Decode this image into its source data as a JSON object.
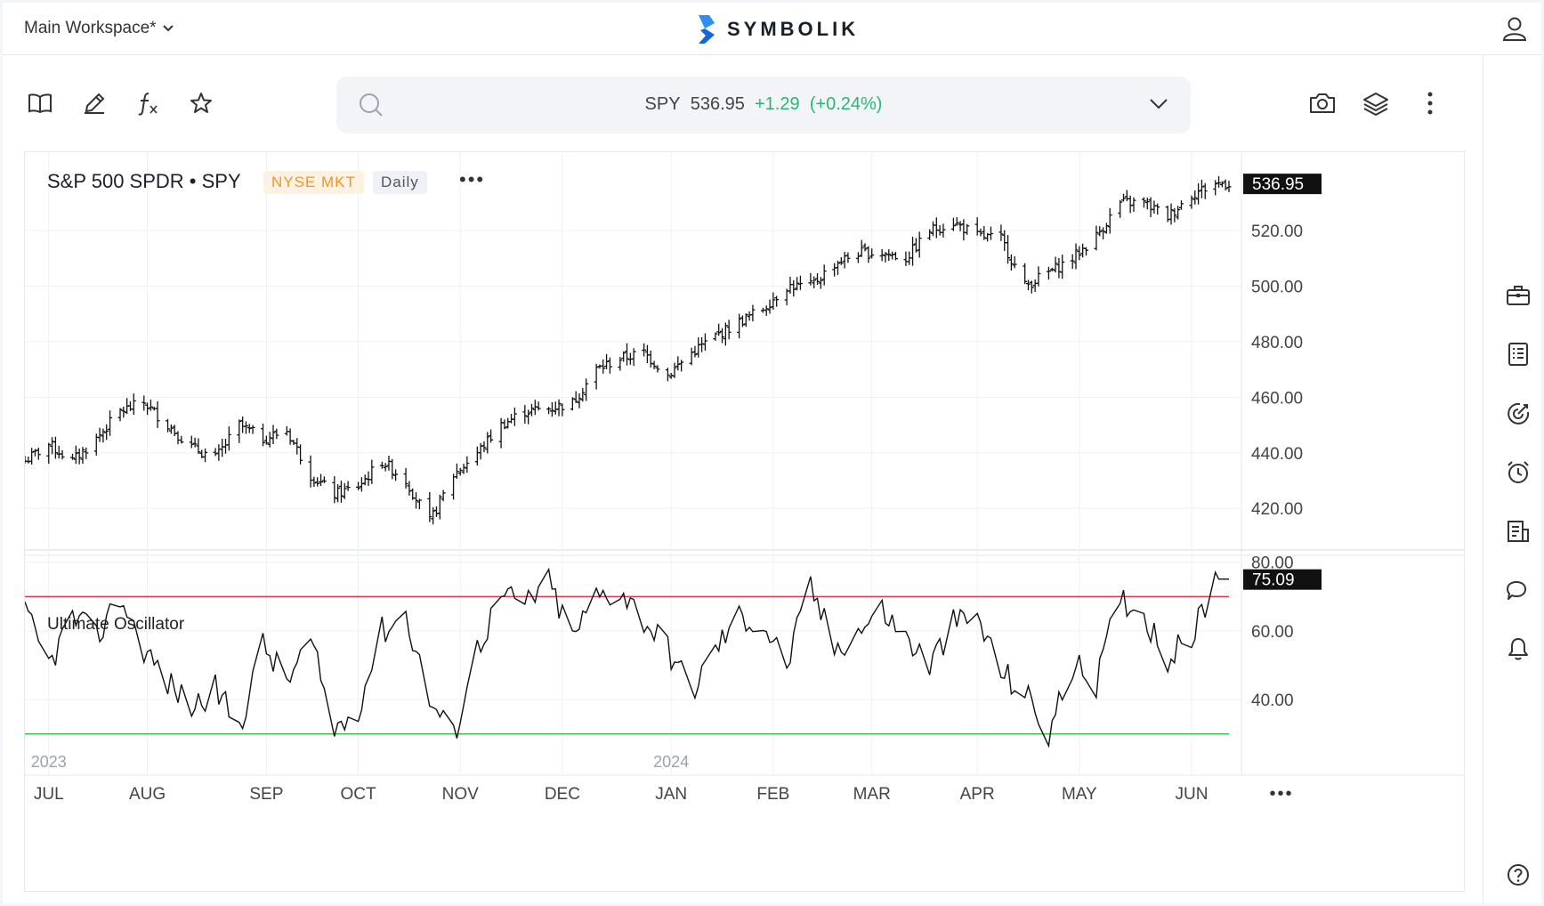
{
  "topbar": {
    "workspace": "Main Workspace*",
    "logo": "SYMBOLIK"
  },
  "toolbar": {
    "icons": [
      "book-icon",
      "pencil-icon",
      "function-icon",
      "star-icon"
    ],
    "right_icons": [
      "camera-icon",
      "layers-icon",
      "more-vertical-icon"
    ]
  },
  "search": {
    "symbol": "SPY",
    "price": "536.95",
    "change": "+1.29",
    "change_pct": "(+0.24%)",
    "change_color": "#2bb673"
  },
  "chart": {
    "title": "S&P 500 SPDR • SPY",
    "exchange": "NYSE MKT",
    "interval": "Daily",
    "oscillator_title": "Ultimate Oscillator",
    "menu": "•••"
  },
  "sidebar": {
    "icons": [
      "briefcase-icon",
      "news-icon",
      "target-icon",
      "alarm-clock-icon",
      "notes-icon",
      "chat-icon",
      "bell-icon",
      "help-icon"
    ]
  },
  "chart_data": [
    {
      "type": "ohlc",
      "title": "S&P 500 SPDR • SPY",
      "ylim": [
        405,
        545
      ],
      "y_ticks": [
        "420.00",
        "440.00",
        "460.00",
        "480.00",
        "500.00",
        "520.00"
      ],
      "last_price": "536.95",
      "x_labels": [
        "JUL",
        "AUG",
        "SEP",
        "OCT",
        "NOV",
        "DEC",
        "JAN",
        "FEB",
        "MAR",
        "APR",
        "MAY",
        "JUN"
      ],
      "year_labels": [
        "2023",
        "2024"
      ],
      "close_path": [
        [
          "2023-06-26",
          437
        ],
        [
          "2023-07-03",
          443
        ],
        [
          "2023-07-10",
          437
        ],
        [
          "2023-07-17",
          445
        ],
        [
          "2023-07-24",
          455
        ],
        [
          "2023-07-31",
          458
        ],
        [
          "2023-08-07",
          450
        ],
        [
          "2023-08-14",
          442
        ],
        [
          "2023-08-21",
          438
        ],
        [
          "2023-08-28",
          450
        ],
        [
          "2023-09-04",
          445
        ],
        [
          "2023-09-11",
          448
        ],
        [
          "2023-09-18",
          432
        ],
        [
          "2023-09-25",
          425
        ],
        [
          "2023-10-02",
          428
        ],
        [
          "2023-10-09",
          437
        ],
        [
          "2023-10-16",
          430
        ],
        [
          "2023-10-23",
          415
        ],
        [
          "2023-10-30",
          432
        ],
        [
          "2023-11-06",
          440
        ],
        [
          "2023-11-13",
          450
        ],
        [
          "2023-11-20",
          455
        ],
        [
          "2023-11-27",
          456
        ],
        [
          "2023-12-04",
          458
        ],
        [
          "2023-12-11",
          470
        ],
        [
          "2023-12-18",
          474
        ],
        [
          "2023-12-25",
          476
        ],
        [
          "2024-01-01",
          468
        ],
        [
          "2024-01-08",
          476
        ],
        [
          "2024-01-15",
          482
        ],
        [
          "2024-01-22",
          487
        ],
        [
          "2024-01-29",
          492
        ],
        [
          "2024-02-05",
          500
        ],
        [
          "2024-02-12",
          500
        ],
        [
          "2024-02-19",
          508
        ],
        [
          "2024-02-26",
          512
        ],
        [
          "2024-03-04",
          512
        ],
        [
          "2024-03-11",
          510
        ],
        [
          "2024-03-18",
          520
        ],
        [
          "2024-03-25",
          523
        ],
        [
          "2024-04-01",
          518
        ],
        [
          "2024-04-08",
          517
        ],
        [
          "2024-04-15",
          500
        ],
        [
          "2024-04-22",
          505
        ],
        [
          "2024-04-29",
          510
        ],
        [
          "2024-05-06",
          518
        ],
        [
          "2024-05-13",
          530
        ],
        [
          "2024-05-20",
          530
        ],
        [
          "2024-05-27",
          525
        ],
        [
          "2024-06-03",
          533
        ],
        [
          "2024-06-10",
          536.95
        ]
      ]
    },
    {
      "type": "line",
      "title": "Ultimate Oscillator",
      "ylim": [
        18,
        82
      ],
      "y_ticks": [
        "40.00",
        "60.00",
        "80.00"
      ],
      "last_value": "75.09",
      "overbought": 70,
      "oversold": 30,
      "overbought_color": "#e0314f",
      "oversold_color": "#2fb84a",
      "points": [
        [
          "2023-06-26",
          65
        ],
        [
          "2023-07-03",
          50
        ],
        [
          "2023-07-10",
          64
        ],
        [
          "2023-07-17",
          58
        ],
        [
          "2023-07-24",
          70
        ],
        [
          "2023-07-31",
          55
        ],
        [
          "2023-08-07",
          45
        ],
        [
          "2023-08-14",
          38
        ],
        [
          "2023-08-21",
          43
        ],
        [
          "2023-08-28",
          32
        ],
        [
          "2023-09-04",
          56
        ],
        [
          "2023-09-11",
          45
        ],
        [
          "2023-09-18",
          57
        ],
        [
          "2023-09-25",
          31
        ],
        [
          "2023-10-02",
          38
        ],
        [
          "2023-10-09",
          60
        ],
        [
          "2023-10-16",
          65
        ],
        [
          "2023-10-23",
          40
        ],
        [
          "2023-10-30",
          29
        ],
        [
          "2023-11-06",
          55
        ],
        [
          "2023-11-13",
          70
        ],
        [
          "2023-11-20",
          68
        ],
        [
          "2023-11-27",
          74
        ],
        [
          "2023-12-04",
          58
        ],
        [
          "2023-12-11",
          70
        ],
        [
          "2023-12-18",
          72
        ],
        [
          "2024-01-01",
          55
        ],
        [
          "2024-01-08",
          42
        ],
        [
          "2024-01-15",
          55
        ],
        [
          "2024-01-22",
          64
        ],
        [
          "2024-01-29",
          62
        ],
        [
          "2024-02-05",
          50
        ],
        [
          "2024-02-12",
          73
        ],
        [
          "2024-02-19",
          55
        ],
        [
          "2024-02-26",
          60
        ],
        [
          "2024-03-04",
          66
        ],
        [
          "2024-03-11",
          58
        ],
        [
          "2024-03-18",
          50
        ],
        [
          "2024-03-25",
          62
        ],
        [
          "2024-04-01",
          64
        ],
        [
          "2024-04-08",
          48
        ],
        [
          "2024-04-15",
          42
        ],
        [
          "2024-04-22",
          30
        ],
        [
          "2024-04-29",
          50
        ],
        [
          "2024-05-06",
          45
        ],
        [
          "2024-05-13",
          70
        ],
        [
          "2024-05-20",
          65
        ],
        [
          "2024-05-27",
          52
        ],
        [
          "2024-06-03",
          58
        ],
        [
          "2024-06-10",
          75.09
        ]
      ]
    }
  ]
}
